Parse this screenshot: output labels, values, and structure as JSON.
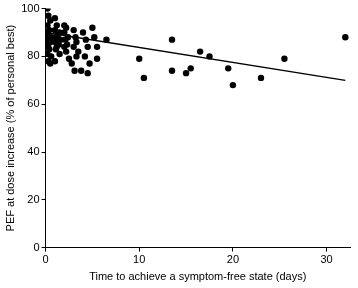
{
  "chart_data": {
    "type": "scatter",
    "x_label": "Time to achieve a symptom-free state (days)",
    "y_label": "PEF at dose increase (% of personal best)",
    "xlim": [
      0,
      32.5
    ],
    "xticks": [
      0,
      10,
      20,
      30
    ],
    "ylim": [
      0,
      100
    ],
    "yticks": [
      0,
      20,
      40,
      60,
      80,
      100
    ],
    "grid": false,
    "series": [
      {
        "type": "scatter",
        "color": "#000000",
        "marker": "circle",
        "x": [
          0.2,
          0.3,
          0.5,
          0.2,
          0.4,
          0.1,
          0.3,
          0.6,
          0.2,
          0.5,
          0.3,
          0.1,
          0.4,
          0.2,
          0.6,
          0.3,
          0.5,
          1,
          1.2,
          1,
          1.5,
          1.3,
          1.1,
          1.6,
          1,
          1.4,
          1.2,
          1.1,
          1.5,
          1,
          2,
          2.2,
          2,
          2.4,
          2.1,
          2.3,
          2,
          2.2,
          2.5,
          2.8,
          3,
          3.2,
          3.3,
          3,
          3.5,
          3.3,
          3.1,
          3.8,
          4,
          4.3,
          4.5,
          4.2,
          4.7,
          4.5,
          5,
          5.2,
          5.5,
          5.5,
          6.5,
          10,
          10.5,
          13.5,
          13.5,
          15,
          15.5,
          16.5,
          17.5,
          19.5,
          20,
          23,
          25.5,
          32
        ],
        "values": [
          100,
          97,
          95,
          93,
          91,
          90,
          89,
          88,
          87,
          86,
          85,
          84,
          83,
          81,
          80,
          78,
          77,
          96,
          93,
          91,
          90,
          89,
          88,
          87,
          86,
          85,
          84,
          83,
          81,
          78,
          93,
          92,
          90,
          88,
          87,
          85,
          84,
          82,
          79,
          77,
          91,
          88,
          86,
          84,
          82,
          80,
          74,
          74,
          90,
          87,
          84,
          80,
          77,
          73,
          92,
          88,
          84,
          79,
          87,
          79,
          71,
          87,
          74,
          73,
          75,
          82,
          80,
          75,
          68,
          71,
          79,
          88
        ]
      },
      {
        "type": "line",
        "color": "#000000",
        "line_style": "solid",
        "x": [
          0,
          32
        ],
        "values": [
          90,
          70
        ]
      }
    ]
  }
}
